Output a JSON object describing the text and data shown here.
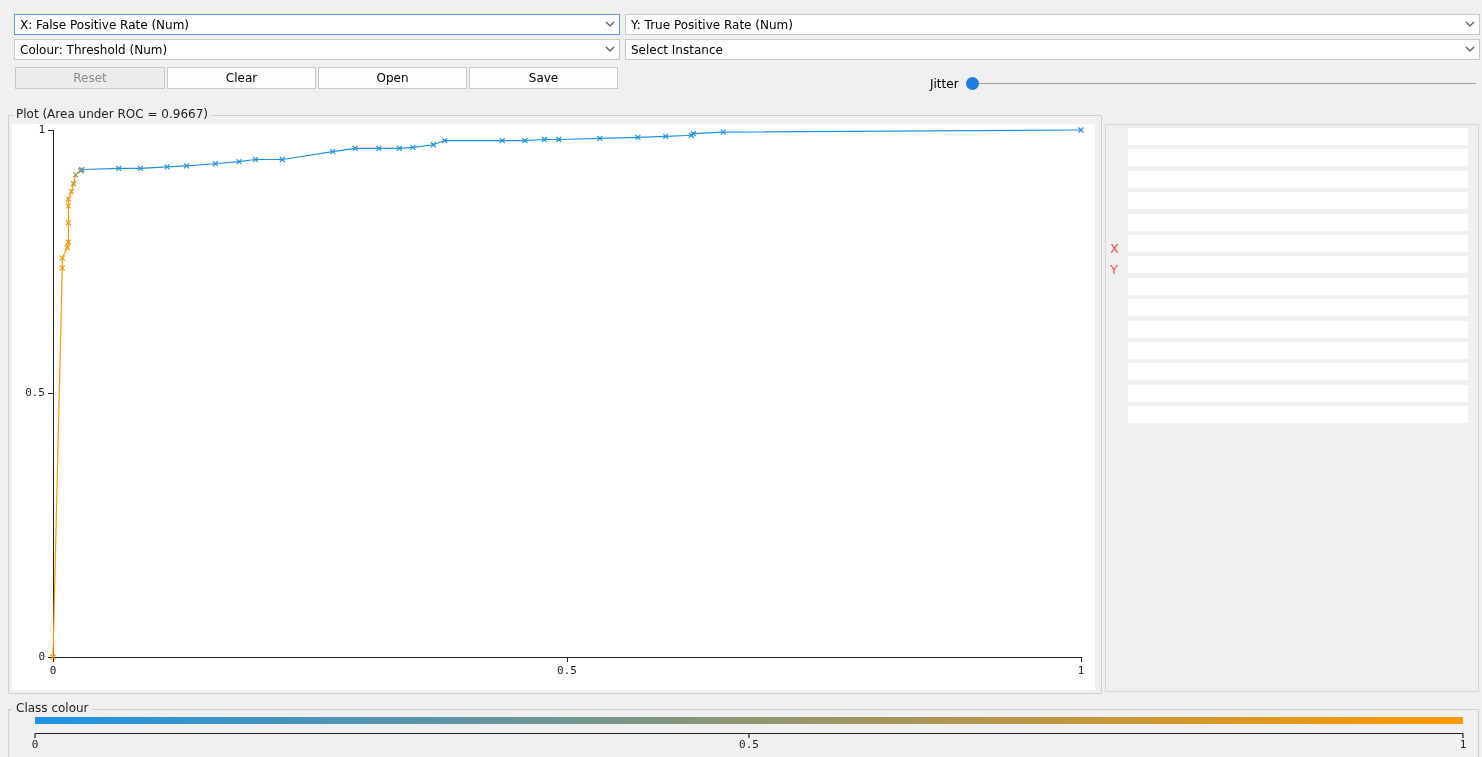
{
  "chart_data": [
    {
      "type": "line",
      "title": "Plot (Area under ROC = 0.9667)",
      "marker": "cross",
      "grid": false,
      "legend": false,
      "xlim": [
        0,
        1
      ],
      "ylim": [
        0,
        1
      ],
      "xticks": [
        0,
        0.5,
        1
      ],
      "yticks": [
        0,
        0.5,
        1
      ],
      "clabel": "Class colour",
      "clim": [
        0,
        1
      ],
      "cticks": [
        0,
        0.5,
        1
      ],
      "series": [
        {
          "color": "#ff9800",
          "x": [
            0,
            0.009,
            0.009,
            0.014,
            0.015,
            0.015,
            0.015,
            0.015,
            0.018,
            0.02,
            0.022,
            0.027
          ],
          "values": [
            0,
            0.738,
            0.757,
            0.777,
            0.787,
            0.824,
            0.856,
            0.869,
            0.883,
            0.898,
            0.915,
            0.923
          ],
          "colors": [
            "#ff9800",
            "#fd9802",
            "#fa9805",
            "#f89807",
            "#f69809",
            "#f2980e",
            "#ed9812",
            "#e89817",
            "#dd9722",
            "#c7973a",
            "#9a9667",
            "#78958a"
          ]
        },
        {
          "color": "#1e93e6",
          "x": [
            0.027,
            0.028,
            0.064,
            0.085,
            0.111,
            0.13,
            0.158,
            0.181,
            0.197,
            0.223,
            0.272,
            0.294,
            0.317,
            0.337,
            0.35,
            0.37,
            0.381,
            0.437,
            0.459,
            0.478,
            0.492,
            0.532,
            0.569,
            0.596,
            0.621,
            0.623,
            0.652,
            1
          ],
          "values": [
            0.923,
            0.925,
            0.927,
            0.927,
            0.93,
            0.932,
            0.936,
            0.94,
            0.944,
            0.944,
            0.959,
            0.965,
            0.965,
            0.965,
            0.967,
            0.972,
            0.98,
            0.98,
            0.98,
            0.982,
            0.982,
            0.984,
            0.986,
            0.988,
            0.99,
            0.993,
            0.996,
            1
          ],
          "colors": [
            "#78958a",
            "#4094c3",
            "#3994ca",
            "#3794cd",
            "#3494cf",
            "#3294d1",
            "#3093d4",
            "#2e93d6",
            "#2c93d8",
            "#2993da",
            "#2893dc",
            "#2793dd",
            "#2693de",
            "#2593df",
            "#2493e0",
            "#2393e1",
            "#2193e3",
            "#2093e4",
            "#2093e4",
            "#2093e4",
            "#1f93e5",
            "#1f93e5",
            "#1f93e5",
            "#1f93e5",
            "#1e93e6",
            "#1e93e6",
            "#1e93e6",
            "#1e93e6"
          ]
        }
      ]
    },
    {
      "type": "other",
      "annotations": [
        "X: False Positive Rate (Num)",
        "Y: True Positive Rate (Num)",
        "Colour: Threshold (Num)",
        "Select Instance",
        "Reset",
        "Clear",
        "Open",
        "Save",
        "Jitter",
        "X",
        "Y"
      ]
    }
  ]
}
